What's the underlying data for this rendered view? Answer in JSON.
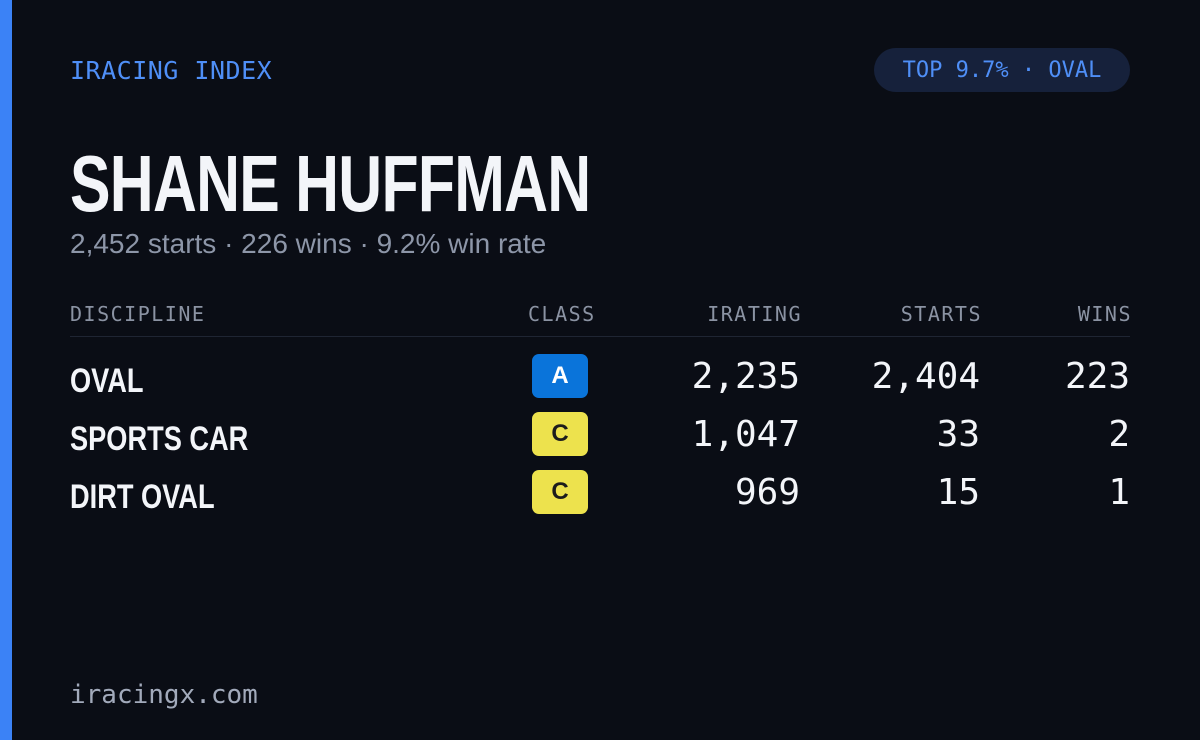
{
  "header": {
    "label": "IRACING INDEX",
    "badge": "TOP 9.7% · OVAL"
  },
  "driver": {
    "name": "SHANE HUFFMAN",
    "summary": "2,452 starts · 226 wins · 9.2% win rate"
  },
  "table": {
    "columns": [
      "DISCIPLINE",
      "CLASS",
      "IRATING",
      "STARTS",
      "WINS"
    ],
    "rows": [
      [
        "OVAL",
        "A",
        "2,235",
        "2,404",
        "223"
      ],
      [
        "SPORTS CAR",
        "C",
        "1,047",
        "33",
        "2"
      ],
      [
        "DIRT OVAL",
        "C",
        "969",
        "15",
        "1"
      ]
    ]
  },
  "footer": {
    "site": "iracingx.com"
  }
}
